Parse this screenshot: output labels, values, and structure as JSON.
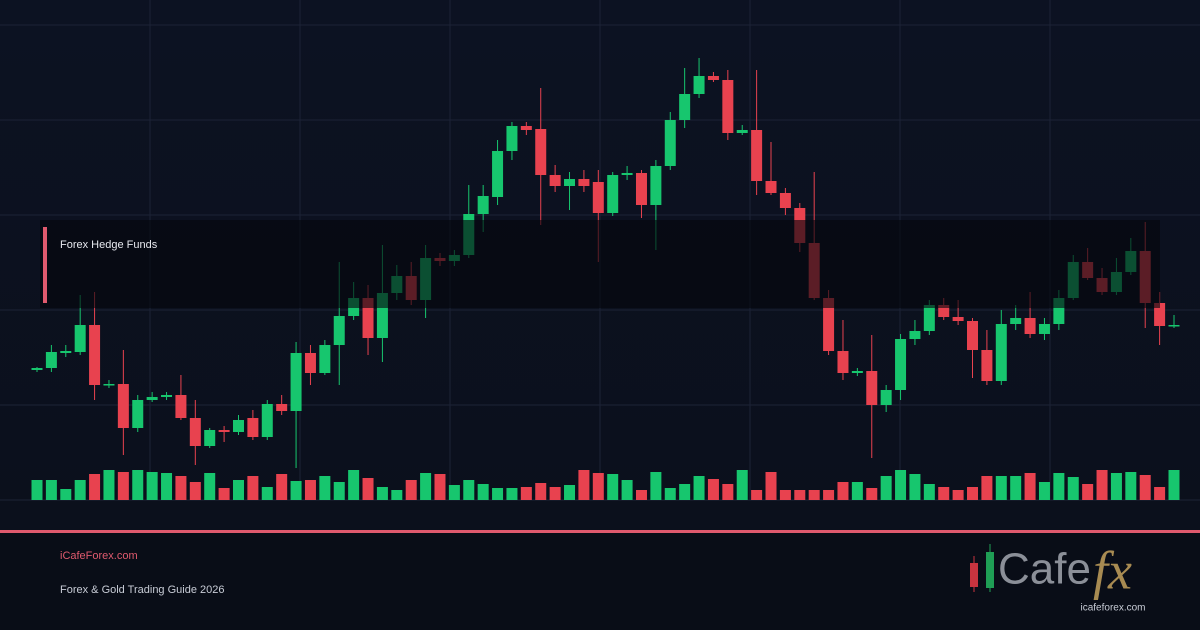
{
  "chart_data": {
    "type": "candlestick",
    "label": "Forex Hedge Funds",
    "up_color": "#17c66e",
    "down_color": "#e8424f",
    "ylim": [
      0,
      500
    ],
    "open": [
      130,
      132,
      147,
      148,
      175,
      115,
      116,
      72,
      100,
      103,
      105,
      82,
      54,
      70,
      68,
      82,
      63,
      96,
      89,
      147,
      127,
      155,
      184,
      202,
      162,
      207,
      224,
      200,
      242,
      239,
      245,
      286,
      303,
      349,
      374,
      371,
      325,
      314,
      321,
      318,
      287,
      325,
      327,
      295,
      334,
      380,
      406,
      424,
      420,
      367,
      370,
      319,
      307,
      292,
      257,
      202,
      149,
      127,
      129,
      95,
      110,
      161,
      169,
      195,
      183,
      179,
      150,
      119,
      176,
      182,
      166,
      176,
      202,
      238,
      222,
      208,
      228,
      249,
      197,
      174
    ],
    "close": [
      132,
      148,
      149,
      175,
      115,
      116,
      72,
      100,
      103,
      105,
      82,
      54,
      70,
      68,
      80,
      63,
      96,
      89,
      147,
      127,
      155,
      184,
      202,
      162,
      207,
      224,
      200,
      242,
      239,
      245,
      286,
      304,
      349,
      374,
      370,
      325,
      314,
      321,
      314,
      287,
      325,
      327,
      295,
      334,
      380,
      406,
      424,
      420,
      367,
      370,
      319,
      307,
      292,
      257,
      202,
      149,
      127,
      129,
      95,
      110,
      161,
      169,
      195,
      183,
      179,
      150,
      119,
      176,
      182,
      166,
      176,
      202,
      238,
      222,
      208,
      228,
      249,
      197,
      174,
      175
    ],
    "high": [
      133,
      155,
      155,
      205,
      208,
      120,
      150,
      105,
      108,
      108,
      125,
      100,
      72,
      74,
      85,
      90,
      100,
      105,
      158,
      155,
      160,
      238,
      218,
      215,
      255,
      235,
      238,
      255,
      247,
      250,
      315,
      315,
      360,
      378,
      378,
      412,
      335,
      328,
      330,
      330,
      328,
      334,
      330,
      340,
      388,
      432,
      442,
      428,
      430,
      375,
      430,
      358,
      312,
      297,
      328,
      210,
      180,
      132,
      165,
      115,
      166,
      180,
      200,
      202,
      200,
      182,
      170,
      190,
      195,
      208,
      182,
      210,
      245,
      252,
      232,
      242,
      262,
      278,
      208,
      185
    ],
    "low": [
      128,
      128,
      143,
      145,
      100,
      112,
      45,
      68,
      98,
      100,
      80,
      35,
      52,
      58,
      65,
      60,
      60,
      85,
      32,
      115,
      125,
      115,
      180,
      145,
      138,
      200,
      195,
      182,
      234,
      234,
      242,
      268,
      295,
      340,
      365,
      275,
      308,
      290,
      308,
      238,
      284,
      320,
      282,
      250,
      330,
      372,
      402,
      418,
      360,
      365,
      305,
      305,
      285,
      248,
      200,
      145,
      120,
      124,
      42,
      88,
      100,
      155,
      165,
      180,
      175,
      122,
      115,
      115,
      170,
      162,
      160,
      170,
      200,
      220,
      205,
      205,
      225,
      172,
      155,
      172
    ],
    "volume": [
      20,
      20,
      11,
      20,
      26,
      30,
      28,
      30,
      28,
      27,
      24,
      18,
      27,
      12,
      20,
      24,
      13,
      26,
      19,
      20,
      24,
      18,
      30,
      22,
      13,
      10,
      20,
      27,
      26,
      15,
      20,
      16,
      12,
      12,
      13,
      17,
      13,
      15,
      30,
      27,
      26,
      20,
      10,
      28,
      12,
      16,
      24,
      21,
      16,
      30,
      10,
      28,
      10,
      10,
      10,
      10,
      18,
      18,
      12,
      24,
      30,
      26,
      16,
      13,
      10,
      13,
      24,
      24,
      24,
      27,
      18,
      27,
      23,
      16,
      30,
      27,
      28,
      25,
      13,
      30
    ]
  },
  "footer": {
    "site": "iCafeForex.com",
    "subtitle": "Forex & Gold Trading Guide 2026"
  },
  "logo": {
    "word": "Cafe",
    "accent": "fx",
    "url": "icafeforex.com"
  }
}
